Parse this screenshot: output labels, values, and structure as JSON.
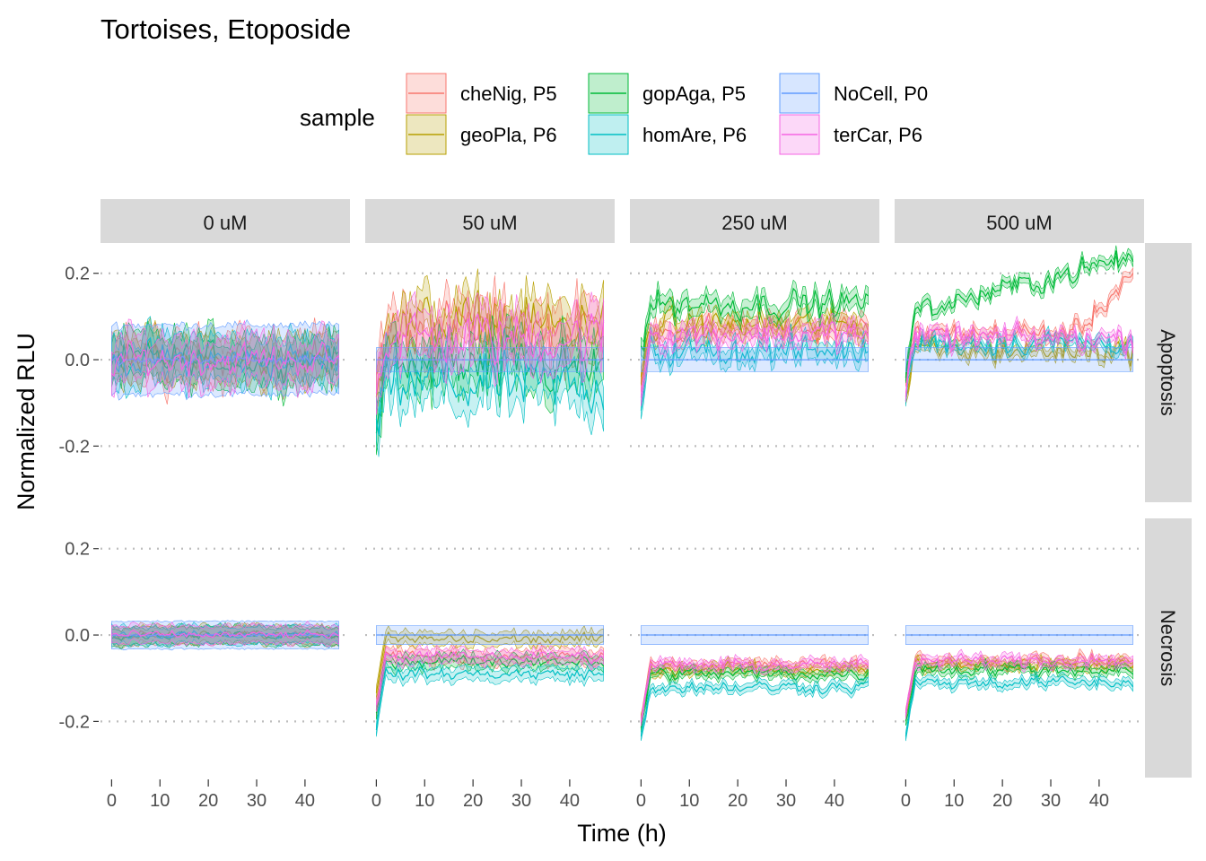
{
  "chart_data": {
    "type": "line",
    "title": "Tortoises, Etoposide",
    "xlabel": "Time (h)",
    "ylabel": "Normalized RLU",
    "legend": {
      "title": "sample",
      "position": "top",
      "entries": [
        {
          "name": "cheNig, P5",
          "color": "#F8766D"
        },
        {
          "name": "geoPla, P6",
          "color": "#B79F00"
        },
        {
          "name": "gopAga, P5",
          "color": "#00BA38"
        },
        {
          "name": "homAre, P6",
          "color": "#00BFC4"
        },
        {
          "name": "NoCell, P0",
          "color": "#619CFF"
        },
        {
          "name": "terCar, P6",
          "color": "#F564E3"
        }
      ]
    },
    "facet_columns": [
      "0 uM",
      "50 uM",
      "250 uM",
      "500 uM"
    ],
    "facet_rows": [
      "Apoptosis",
      "Necrosis"
    ],
    "x_ticks": [
      0,
      10,
      20,
      30,
      40
    ],
    "y_ticks": [
      -0.2,
      0.0,
      0.2
    ],
    "y_tick_labels": [
      "-0.2",
      "0.0",
      "0.2"
    ],
    "x_range": [
      -2.3,
      49.3
    ],
    "y_range": [
      -0.33,
      0.27
    ],
    "grid": "horizontal dotted major lines",
    "series_mean_levels": {
      "Apoptosis": {
        "0 uM": {
          "cheNig, P5": 0.0,
          "geoPla, P6": 0.0,
          "gopAga, P5": 0.0,
          "homAre, P6": 0.0,
          "NoCell, P0": 0.0,
          "terCar, P6": 0.0
        },
        "50 uM": {
          "cheNig, P5": 0.07,
          "geoPla, P6": 0.08,
          "gopAga, P5": -0.02,
          "homAre, P6": -0.06,
          "NoCell, P0": 0.0,
          "terCar, P6": 0.05
        },
        "250 uM": {
          "cheNig, P5": 0.07,
          "geoPla, P6": 0.08,
          "gopAga, P5": 0.13,
          "homAre, P6": 0.02,
          "NoCell, P0": 0.0,
          "terCar, P6": 0.06
        },
        "500 uM": {
          "cheNig, P5": 0.06,
          "geoPla, P6": 0.02,
          "gopAga, P5": 0.17,
          "homAre, P6": 0.04,
          "NoCell, P0": 0.0,
          "terCar, P6": 0.05
        }
      },
      "Necrosis": {
        "0 uM": {
          "cheNig, P5": 0.0,
          "geoPla, P6": 0.0,
          "gopAga, P5": 0.0,
          "homAre, P6": 0.0,
          "NoCell, P0": 0.0,
          "terCar, P6": 0.0
        },
        "50 uM": {
          "cheNig, P5": -0.05,
          "geoPla, P6": -0.01,
          "gopAga, P5": -0.06,
          "homAre, P6": -0.09,
          "NoCell, P0": 0.0,
          "terCar, P6": -0.05
        },
        "250 uM": {
          "cheNig, P5": -0.07,
          "geoPla, P6": -0.08,
          "gopAga, P5": -0.09,
          "homAre, P6": -0.12,
          "NoCell, P0": 0.0,
          "terCar, P6": -0.07
        },
        "500 uM": {
          "cheNig, P5": -0.06,
          "geoPla, P6": -0.07,
          "gopAga, P5": -0.08,
          "homAre, P6": -0.11,
          "NoCell, P0": 0.0,
          "terCar, P6": -0.06
        }
      }
    }
  }
}
